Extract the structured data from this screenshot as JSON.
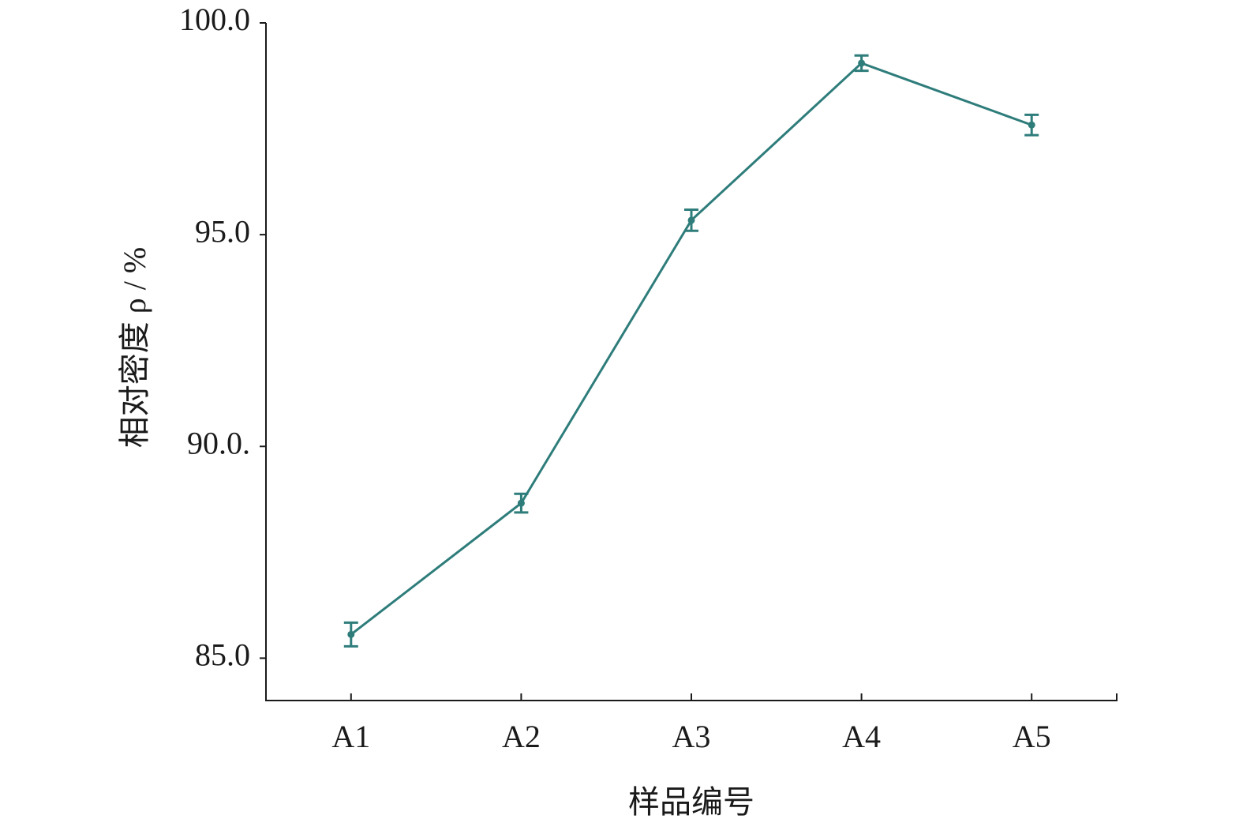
{
  "chart_data": {
    "type": "line",
    "x_label": "样品编号",
    "y_label": "相对密度 ρ / %",
    "categories": [
      "A1",
      "A2",
      "A3",
      "A4",
      "A5"
    ],
    "values": [
      85.56,
      88.66,
      95.34,
      99.05,
      97.59
    ],
    "errors": [
      0.28,
      0.22,
      0.25,
      0.18,
      0.24
    ],
    "color": "#2e7d7b",
    "ylim": [
      84,
      100
    ],
    "yticks": [
      {
        "value": 85,
        "label": "85.0"
      },
      {
        "value": 90,
        "label": "90.0."
      },
      {
        "value": 95,
        "label": "95.0"
      },
      {
        "value": 100,
        "label": "100.0"
      }
    ],
    "grid": false
  }
}
